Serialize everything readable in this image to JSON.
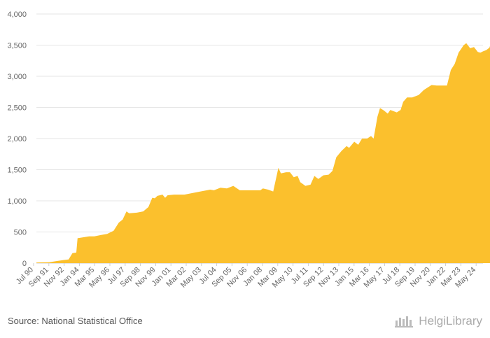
{
  "chart_data": {
    "type": "area",
    "title": "",
    "xlabel": "",
    "ylabel": "",
    "ylim": [
      0,
      4000
    ],
    "y_ticks": [
      "0",
      "500",
      "1,000",
      "1,500",
      "2,000",
      "2,500",
      "3,000",
      "3,500",
      "4,000"
    ],
    "y_tick_values": [
      0,
      500,
      1000,
      1500,
      2000,
      2500,
      3000,
      3500,
      4000
    ],
    "x_tick_labels": [
      "Jul 90",
      "Sep 91",
      "Nov 92",
      "Jan 94",
      "Mar 95",
      "May 96",
      "Jul 97",
      "Sep 98",
      "Nov 99",
      "Jan 01",
      "Mar 02",
      "May 03",
      "Jul 04",
      "Sep 05",
      "Nov 06",
      "Jan 08",
      "Mar 09",
      "May 10",
      "Jul 11",
      "Sep 12",
      "Nov 13",
      "Jan 15",
      "Mar 16",
      "May 17",
      "Jul 18",
      "Sep 19",
      "Nov 20",
      "Jan 22",
      "Mar 23",
      "May 24"
    ],
    "x_range": [
      1990.5,
      2025.2
    ],
    "series": [
      {
        "name": "Value",
        "color": "#fbc02d",
        "points": [
          [
            1990.5,
            10
          ],
          [
            1991.5,
            15
          ],
          [
            1992.0,
            30
          ],
          [
            1992.6,
            50
          ],
          [
            1993.0,
            60
          ],
          [
            1993.3,
            160
          ],
          [
            1993.6,
            170
          ],
          [
            1993.7,
            400
          ],
          [
            1994.0,
            410
          ],
          [
            1994.6,
            430
          ],
          [
            1995.0,
            430
          ],
          [
            1995.5,
            450
          ],
          [
            1996.0,
            470
          ],
          [
            1996.5,
            520
          ],
          [
            1996.9,
            650
          ],
          [
            1997.2,
            700
          ],
          [
            1997.5,
            830
          ],
          [
            1997.7,
            800
          ],
          [
            1998.3,
            810
          ],
          [
            1998.8,
            830
          ],
          [
            1999.2,
            900
          ],
          [
            1999.5,
            1050
          ],
          [
            1999.7,
            1040
          ],
          [
            1999.9,
            1080
          ],
          [
            2000.3,
            1100
          ],
          [
            2000.5,
            1050
          ],
          [
            2000.7,
            1090
          ],
          [
            2001.2,
            1100
          ],
          [
            2002.0,
            1100
          ],
          [
            2003.0,
            1140
          ],
          [
            2003.5,
            1160
          ],
          [
            2004.0,
            1180
          ],
          [
            2004.3,
            1170
          ],
          [
            2004.8,
            1210
          ],
          [
            2005.3,
            1200
          ],
          [
            2005.8,
            1240
          ],
          [
            2006.3,
            1170
          ],
          [
            2007.0,
            1170
          ],
          [
            2007.9,
            1170
          ],
          [
            2008.1,
            1200
          ],
          [
            2008.5,
            1180
          ],
          [
            2008.9,
            1150
          ],
          [
            2009.3,
            1530
          ],
          [
            2009.5,
            1440
          ],
          [
            2009.9,
            1460
          ],
          [
            2010.2,
            1460
          ],
          [
            2010.5,
            1380
          ],
          [
            2010.8,
            1400
          ],
          [
            2011.0,
            1300
          ],
          [
            2011.4,
            1240
          ],
          [
            2011.8,
            1260
          ],
          [
            2012.1,
            1400
          ],
          [
            2012.4,
            1350
          ],
          [
            2012.8,
            1410
          ],
          [
            2013.2,
            1420
          ],
          [
            2013.5,
            1480
          ],
          [
            2013.8,
            1700
          ],
          [
            2014.2,
            1800
          ],
          [
            2014.6,
            1880
          ],
          [
            2014.8,
            1850
          ],
          [
            2015.2,
            1950
          ],
          [
            2015.5,
            1900
          ],
          [
            2015.8,
            2000
          ],
          [
            2016.2,
            2000
          ],
          [
            2016.5,
            2040
          ],
          [
            2016.7,
            2000
          ],
          [
            2017.0,
            2350
          ],
          [
            2017.2,
            2490
          ],
          [
            2017.5,
            2450
          ],
          [
            2017.8,
            2400
          ],
          [
            2018.0,
            2460
          ],
          [
            2018.5,
            2420
          ],
          [
            2018.8,
            2460
          ],
          [
            2019.0,
            2590
          ],
          [
            2019.3,
            2660
          ],
          [
            2019.7,
            2660
          ],
          [
            2020.2,
            2700
          ],
          [
            2020.6,
            2780
          ],
          [
            2021.2,
            2860
          ],
          [
            2021.6,
            2850
          ],
          [
            2022.4,
            2850
          ],
          [
            2022.7,
            3100
          ],
          [
            2023.0,
            3200
          ],
          [
            2023.3,
            3380
          ],
          [
            2023.7,
            3500
          ],
          [
            2023.9,
            3530
          ],
          [
            2024.2,
            3450
          ],
          [
            2024.5,
            3470
          ],
          [
            2024.8,
            3390
          ],
          [
            2025.0,
            3380
          ],
          [
            2025.2,
            3400
          ],
          [
            2025.45,
            3420
          ],
          [
            2025.7,
            3460
          ],
          [
            2025.9,
            3580
          ]
        ]
      }
    ]
  },
  "footer": {
    "source": "Source: National Statistical Office",
    "brand": "HelgiLibrary",
    "brand_icon": "helgi-logo-icon"
  },
  "colors": {
    "area": "#fbc02d",
    "grid": "#e6e6e6",
    "axis_text": "#666666"
  }
}
